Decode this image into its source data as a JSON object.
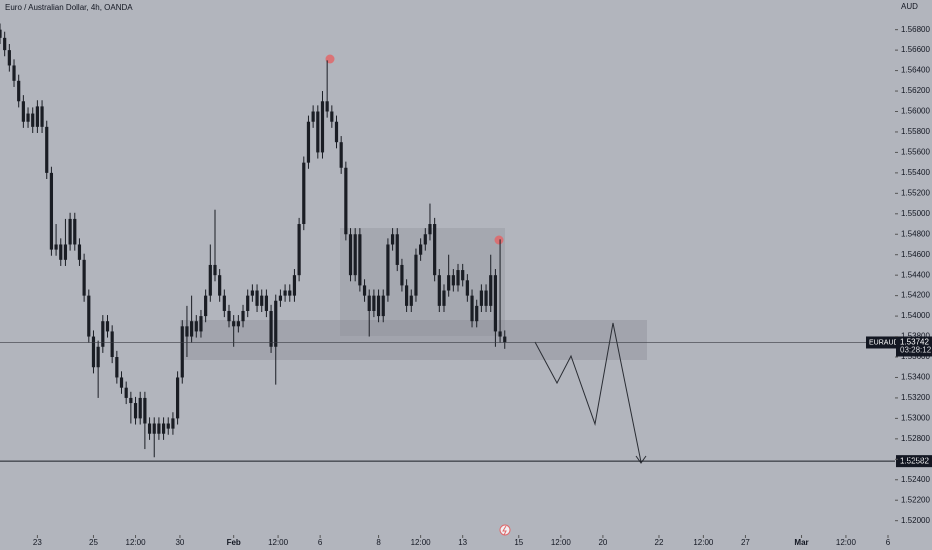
{
  "chart_data": {
    "type": "candlestick",
    "title": "Euro / Australian Dollar, 4h, OANDA",
    "currency": "AUD",
    "symbol": "EURAUD",
    "last_price": 1.53742,
    "countdown": "03:28:12",
    "level": 1.52582,
    "color": "#1a1d24",
    "open": [
      1.568,
      1.5672,
      1.566,
      1.5645,
      1.563,
      1.561,
      1.559,
      1.5598,
      1.5585,
      1.5605,
      1.5585,
      1.554,
      1.5465,
      1.547,
      1.5455,
      1.547,
      1.5495,
      1.547,
      1.5455,
      1.542,
      1.538,
      1.535,
      1.537,
      1.5395,
      1.5385,
      1.536,
      1.534,
      1.533,
      1.532,
      1.5315,
      1.53,
      1.532,
      1.5295,
      1.5285,
      1.5295,
      1.5285,
      1.5295,
      1.529,
      1.53,
      1.534,
      1.539,
      1.538,
      1.5395,
      1.5385,
      1.54,
      1.542,
      1.545,
      1.544,
      1.542,
      1.5405,
      1.5395,
      1.539,
      1.5395,
      1.5405,
      1.542,
      1.5425,
      1.541,
      1.542,
      1.5405,
      1.537,
      1.5415,
      1.542,
      1.5425,
      1.542,
      1.544,
      1.549,
      1.555,
      1.559,
      1.56,
      1.556,
      1.561,
      1.56,
      1.559,
      1.557,
      1.5545,
      1.548,
      1.544,
      1.548,
      1.543,
      1.542,
      1.5405,
      1.542,
      1.54,
      1.542,
      1.547,
      1.548,
      1.545,
      1.543,
      1.541,
      1.542,
      1.546,
      1.547,
      1.548,
      1.549,
      1.544,
      1.541,
      1.5425,
      1.544,
      1.543,
      1.5445,
      1.5435,
      1.542,
      1.5395,
      1.541,
      1.5425,
      1.541,
      1.544,
      1.5385,
      1.538
    ],
    "high": [
      1.5686,
      1.5678,
      1.5666,
      1.5651,
      1.5636,
      1.5616,
      1.5604,
      1.5604,
      1.5611,
      1.5611,
      1.5591,
      1.5546,
      1.549,
      1.5476,
      1.5495,
      1.5501,
      1.5501,
      1.5476,
      1.5461,
      1.5426,
      1.5386,
      1.5376,
      1.5401,
      1.5401,
      1.5391,
      1.5366,
      1.5346,
      1.5336,
      1.5326,
      1.5321,
      1.5326,
      1.5326,
      1.5301,
      1.5301,
      1.5301,
      1.5301,
      1.5301,
      1.5306,
      1.5346,
      1.5396,
      1.541,
      1.542,
      1.5401,
      1.5406,
      1.5426,
      1.547,
      1.5504,
      1.5446,
      1.5426,
      1.5411,
      1.5401,
      1.5401,
      1.5411,
      1.5426,
      1.5431,
      1.5431,
      1.5426,
      1.5426,
      1.5411,
      1.5421,
      1.5426,
      1.5431,
      1.5431,
      1.5446,
      1.5496,
      1.5556,
      1.5596,
      1.5606,
      1.5606,
      1.562,
      1.565,
      1.5606,
      1.5596,
      1.5576,
      1.5551,
      1.5486,
      1.5486,
      1.5486,
      1.5436,
      1.5426,
      1.5426,
      1.5426,
      1.5426,
      1.5476,
      1.5486,
      1.5486,
      1.5456,
      1.5436,
      1.5426,
      1.5466,
      1.5476,
      1.5486,
      1.551,
      1.5496,
      1.5446,
      1.5431,
      1.546,
      1.5446,
      1.5451,
      1.5451,
      1.5441,
      1.5426,
      1.5416,
      1.5431,
      1.5431,
      1.546,
      1.5446,
      1.5475,
      1.5386
    ],
    "low": [
      1.5666,
      1.5654,
      1.5639,
      1.5624,
      1.5604,
      1.5584,
      1.5584,
      1.5579,
      1.5579,
      1.5579,
      1.5534,
      1.5459,
      1.5459,
      1.5449,
      1.5449,
      1.5464,
      1.5464,
      1.5449,
      1.5414,
      1.5374,
      1.5344,
      1.532,
      1.5364,
      1.5379,
      1.5354,
      1.5334,
      1.5324,
      1.5314,
      1.5295,
      1.5294,
      1.5294,
      1.527,
      1.5279,
      1.5262,
      1.5279,
      1.5279,
      1.5284,
      1.5284,
      1.5294,
      1.5334,
      1.536,
      1.5374,
      1.5379,
      1.5379,
      1.5394,
      1.5414,
      1.5434,
      1.5414,
      1.5399,
      1.5389,
      1.537,
      1.5384,
      1.5389,
      1.5399,
      1.5414,
      1.5404,
      1.5404,
      1.5399,
      1.5364,
      1.5333,
      1.5409,
      1.5414,
      1.5414,
      1.5414,
      1.5434,
      1.5484,
      1.5544,
      1.5584,
      1.5554,
      1.5554,
      1.5594,
      1.5584,
      1.5564,
      1.5539,
      1.5474,
      1.5434,
      1.5434,
      1.5424,
      1.5414,
      1.538,
      1.5399,
      1.5394,
      1.5394,
      1.5414,
      1.5464,
      1.5444,
      1.5424,
      1.5404,
      1.5404,
      1.5414,
      1.5454,
      1.5464,
      1.5474,
      1.5434,
      1.5404,
      1.5404,
      1.5419,
      1.5424,
      1.5424,
      1.5429,
      1.5414,
      1.5389,
      1.5389,
      1.5404,
      1.5404,
      1.5404,
      1.537,
      1.5374,
      1.5368
    ],
    "close": [
      1.5672,
      1.566,
      1.5645,
      1.563,
      1.561,
      1.559,
      1.5598,
      1.5585,
      1.5605,
      1.5585,
      1.554,
      1.5465,
      1.547,
      1.5455,
      1.547,
      1.5495,
      1.547,
      1.5455,
      1.542,
      1.538,
      1.535,
      1.537,
      1.5395,
      1.5385,
      1.536,
      1.534,
      1.533,
      1.532,
      1.5315,
      1.53,
      1.532,
      1.5295,
      1.5285,
      1.5295,
      1.5285,
      1.5295,
      1.529,
      1.53,
      1.534,
      1.539,
      1.538,
      1.5395,
      1.5385,
      1.54,
      1.542,
      1.545,
      1.544,
      1.542,
      1.5405,
      1.5395,
      1.539,
      1.5395,
      1.5405,
      1.542,
      1.5425,
      1.541,
      1.542,
      1.5405,
      1.537,
      1.5415,
      1.542,
      1.5425,
      1.542,
      1.544,
      1.549,
      1.555,
      1.559,
      1.56,
      1.556,
      1.561,
      1.56,
      1.559,
      1.557,
      1.5545,
      1.548,
      1.544,
      1.548,
      1.543,
      1.542,
      1.5405,
      1.542,
      1.54,
      1.542,
      1.547,
      1.548,
      1.545,
      1.543,
      1.541,
      1.542,
      1.546,
      1.547,
      1.548,
      1.549,
      1.544,
      1.541,
      1.5425,
      1.544,
      1.543,
      1.5445,
      1.5435,
      1.542,
      1.5395,
      1.541,
      1.5425,
      1.541,
      1.544,
      1.5385,
      1.538,
      1.53742
    ],
    "xlim": [
      0,
      191.5
    ],
    "xticks": [
      {
        "value": 8,
        "label": "23"
      },
      {
        "value": 20,
        "label": "25"
      },
      {
        "value": 29,
        "label": "12:00"
      },
      {
        "value": 38.5,
        "label": "30"
      },
      {
        "value": 50,
        "label": "Feb"
      },
      {
        "value": 59.5,
        "label": "12:00"
      },
      {
        "value": 68.5,
        "label": "6"
      },
      {
        "value": 81,
        "label": "8"
      },
      {
        "value": 90,
        "label": "12:00"
      },
      {
        "value": 99,
        "label": "13"
      },
      {
        "value": 111,
        "label": "15"
      },
      {
        "value": 120,
        "label": "12:00"
      },
      {
        "value": 129,
        "label": "20"
      },
      {
        "value": 141,
        "label": "22"
      },
      {
        "value": 150.5,
        "label": "12:00"
      },
      {
        "value": 159.5,
        "label": "27"
      },
      {
        "value": 171.5,
        "label": "Mar"
      },
      {
        "value": 181,
        "label": "12:00"
      },
      {
        "value": 190,
        "label": "6"
      }
    ],
    "ylim": [
      1.5186,
      1.5709
    ],
    "yticks": [
      {
        "value": 1.568,
        "label": "1.56800"
      },
      {
        "value": 1.566,
        "label": "1.56600"
      },
      {
        "value": 1.564,
        "label": "1.56400"
      },
      {
        "value": 1.562,
        "label": "1.56200"
      },
      {
        "value": 1.56,
        "label": "1.56000"
      },
      {
        "value": 1.558,
        "label": "1.55800"
      },
      {
        "value": 1.556,
        "label": "1.55600"
      },
      {
        "value": 1.554,
        "label": "1.55400"
      },
      {
        "value": 1.552,
        "label": "1.55200"
      },
      {
        "value": 1.55,
        "label": "1.55000"
      },
      {
        "value": 1.548,
        "label": "1.54800"
      },
      {
        "value": 1.546,
        "label": "1.54600"
      },
      {
        "value": 1.544,
        "label": "1.54400"
      },
      {
        "value": 1.542,
        "label": "1.54200"
      },
      {
        "value": 1.54,
        "label": "1.54000"
      },
      {
        "value": 1.538,
        "label": "1.53800"
      },
      {
        "value": 1.536,
        "label": "1.53600"
      },
      {
        "value": 1.534,
        "label": "1.53400"
      },
      {
        "value": 1.532,
        "label": "1.53200"
      },
      {
        "value": 1.53,
        "label": "1.53000"
      },
      {
        "value": 1.528,
        "label": "1.52800"
      },
      {
        "value": 1.526,
        "label": "1.52600"
      },
      {
        "value": 1.524,
        "label": "1.52400"
      },
      {
        "value": 1.522,
        "label": "1.52200"
      },
      {
        "value": 1.52,
        "label": "1.52000"
      }
    ]
  }
}
